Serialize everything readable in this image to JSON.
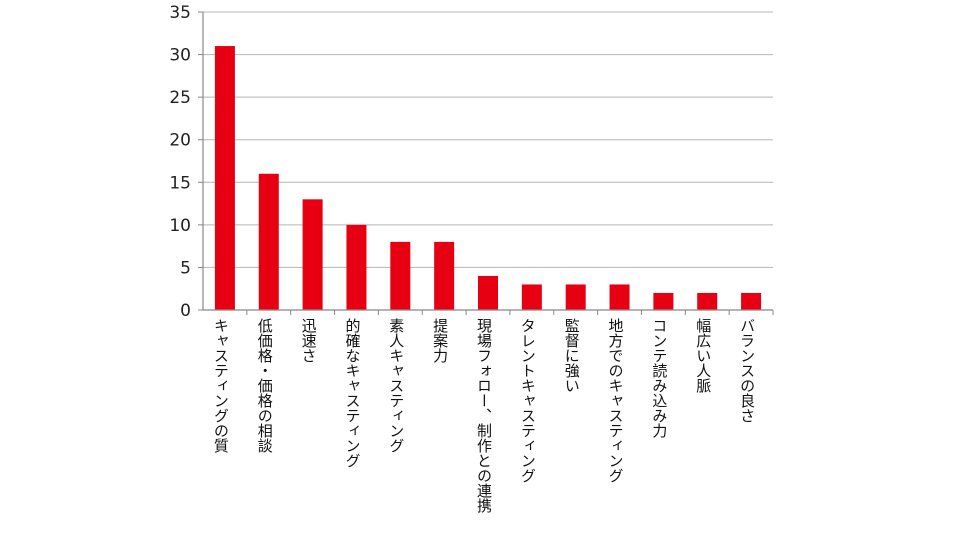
{
  "chart_data": {
    "type": "bar",
    "title": "",
    "xlabel": "",
    "ylabel": "",
    "ylim": [
      0,
      35
    ],
    "yticks": [
      0,
      5,
      10,
      15,
      20,
      25,
      30,
      35
    ],
    "grid": true,
    "bar_color": "#e60012",
    "categories": [
      "キャスティングの質",
      "低価格・価格の相談",
      "迅速さ",
      "的確なキャスティング",
      "素人キャスティング",
      "提案力",
      "現場フォロー、制作との連携",
      "タレントキャスティング",
      "監督に強い",
      "地方でのキャスティング",
      "コンテ読み込み力",
      "幅広い人脈",
      "バランスの良さ"
    ],
    "values": [
      31,
      16,
      13,
      10,
      8,
      8,
      4,
      3,
      3,
      3,
      2,
      2,
      2
    ]
  }
}
